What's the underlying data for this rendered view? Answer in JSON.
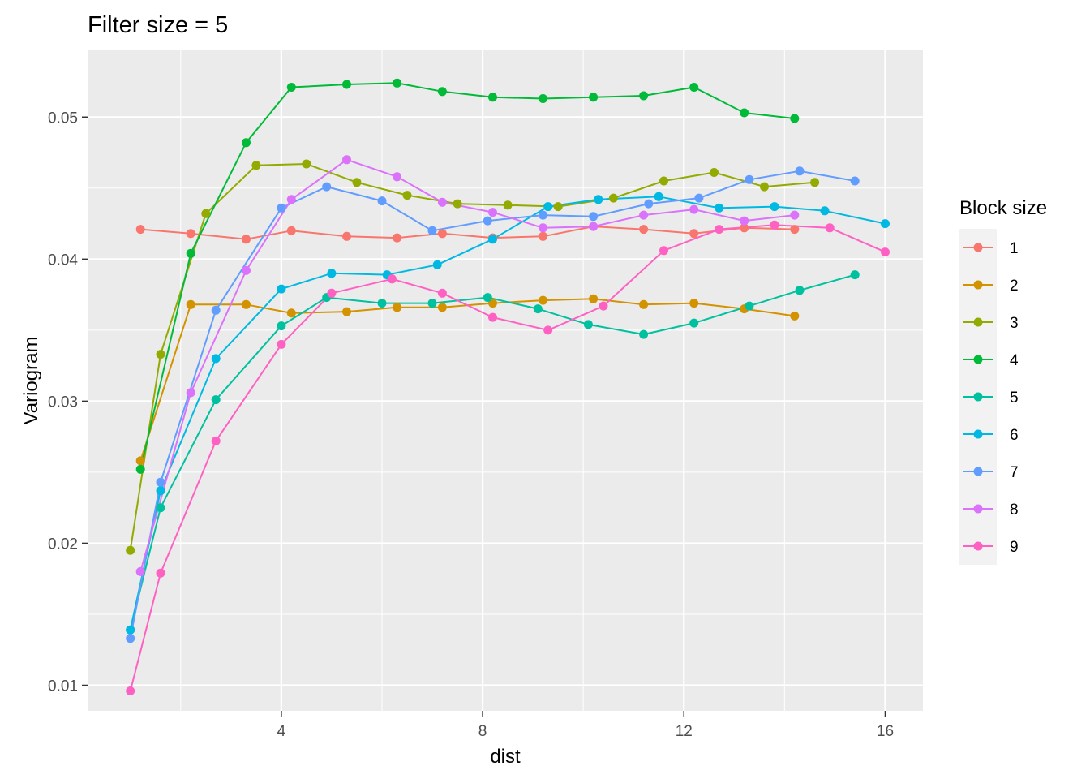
{
  "chart_data": {
    "type": "line",
    "title": "Filter size = 5",
    "xlabel": "dist",
    "ylabel": "Variogram",
    "xlim": [
      0.15,
      16.75
    ],
    "ylim": [
      0.0082,
      0.0547
    ],
    "x_ticks": [
      4,
      8,
      12,
      16
    ],
    "y_ticks": [
      0.01,
      0.02,
      0.03,
      0.04,
      0.05
    ],
    "x_tick_labels": [
      "4",
      "8",
      "12",
      "16"
    ],
    "y_tick_labels": [
      "0.01",
      "0.02",
      "0.03",
      "0.04",
      "0.05"
    ],
    "grid": true,
    "legend": {
      "title": "Block size",
      "position": "right"
    },
    "series": [
      {
        "name": "1",
        "color": "#F8766D",
        "x": [
          1.2,
          2.2,
          3.3,
          4.2,
          5.3,
          6.3,
          7.2,
          8.2,
          9.2,
          10.2,
          11.2,
          12.2,
          13.2,
          14.2
        ],
        "y": [
          0.0421,
          0.0418,
          0.0414,
          0.042,
          0.0416,
          0.0415,
          0.0418,
          0.0415,
          0.0416,
          0.0423,
          0.0421,
          0.0418,
          0.0422,
          0.0421
        ]
      },
      {
        "name": "2",
        "color": "#D39200",
        "x": [
          1.2,
          2.2,
          3.3,
          4.2,
          5.3,
          6.3,
          7.2,
          8.2,
          9.2,
          10.2,
          11.2,
          12.2,
          13.2,
          14.2
        ],
        "y": [
          0.0258,
          0.0368,
          0.0368,
          0.0362,
          0.0363,
          0.0366,
          0.0366,
          0.0369,
          0.0371,
          0.0372,
          0.0368,
          0.0369,
          0.0365,
          0.036
        ]
      },
      {
        "name": "3",
        "color": "#93AA00",
        "x": [
          1.0,
          1.6,
          2.5,
          3.5,
          4.5,
          5.5,
          6.5,
          7.5,
          8.5,
          9.5,
          10.6,
          11.6,
          12.6,
          13.6,
          14.6
        ],
        "y": [
          0.0195,
          0.0333,
          0.0432,
          0.0466,
          0.0467,
          0.0454,
          0.0445,
          0.0439,
          0.0438,
          0.0437,
          0.0443,
          0.0455,
          0.0461,
          0.0451,
          0.0454
        ]
      },
      {
        "name": "4",
        "color": "#00BA38",
        "x": [
          1.2,
          2.2,
          3.3,
          4.2,
          5.3,
          6.3,
          7.2,
          8.2,
          9.2,
          10.2,
          11.2,
          12.2,
          13.2,
          14.2
        ],
        "y": [
          0.0252,
          0.0404,
          0.0482,
          0.0521,
          0.0523,
          0.0524,
          0.0518,
          0.0514,
          0.0513,
          0.0514,
          0.0515,
          0.0521,
          0.0503,
          0.0499
        ]
      },
      {
        "name": "5",
        "color": "#00C19F",
        "x": [
          1.0,
          1.6,
          2.7,
          4.0,
          4.9,
          6.0,
          7.0,
          8.1,
          9.1,
          10.1,
          11.2,
          12.2,
          13.3,
          14.3,
          15.4
        ],
        "y": [
          0.0139,
          0.0225,
          0.0301,
          0.0353,
          0.0373,
          0.0369,
          0.0369,
          0.0373,
          0.0365,
          0.0354,
          0.0347,
          0.0355,
          0.0367,
          0.0378,
          0.0389
        ]
      },
      {
        "name": "6",
        "color": "#00B9E3",
        "x": [
          1.0,
          1.6,
          2.7,
          4.0,
          5.0,
          6.1,
          7.1,
          8.2,
          9.3,
          10.3,
          11.5,
          12.7,
          13.8,
          14.8,
          16.0
        ],
        "y": [
          0.0139,
          0.0237,
          0.033,
          0.0379,
          0.039,
          0.0389,
          0.0396,
          0.0414,
          0.0437,
          0.0442,
          0.0444,
          0.0436,
          0.0437,
          0.0434,
          0.0425
        ]
      },
      {
        "name": "7",
        "color": "#619CFF",
        "x": [
          1.0,
          1.6,
          2.7,
          4.0,
          4.9,
          6.0,
          7.0,
          8.1,
          9.2,
          10.2,
          11.3,
          12.3,
          13.3,
          14.3,
          15.4
        ],
        "y": [
          0.0133,
          0.0243,
          0.0364,
          0.0436,
          0.0451,
          0.0441,
          0.042,
          0.0427,
          0.0431,
          0.043,
          0.0439,
          0.0443,
          0.0456,
          0.0462,
          0.0455
        ]
      },
      {
        "name": "8",
        "color": "#DB72FB",
        "x": [
          1.2,
          2.2,
          3.3,
          4.2,
          5.3,
          6.3,
          7.2,
          8.2,
          9.2,
          10.2,
          11.2,
          12.2,
          13.2,
          14.2
        ],
        "y": [
          0.018,
          0.0306,
          0.0392,
          0.0442,
          0.047,
          0.0458,
          0.044,
          0.0433,
          0.0422,
          0.0423,
          0.0431,
          0.0435,
          0.0427,
          0.0431
        ]
      },
      {
        "name": "9",
        "color": "#FF61C3",
        "x": [
          1.0,
          1.6,
          2.7,
          4.0,
          5.0,
          6.2,
          7.2,
          8.2,
          9.3,
          10.4,
          11.6,
          12.7,
          13.8,
          14.9,
          16.0
        ],
        "y": [
          0.0096,
          0.0179,
          0.0272,
          0.034,
          0.0376,
          0.0386,
          0.0376,
          0.0359,
          0.035,
          0.0367,
          0.0406,
          0.0421,
          0.0424,
          0.0422,
          0.0405
        ]
      }
    ]
  }
}
